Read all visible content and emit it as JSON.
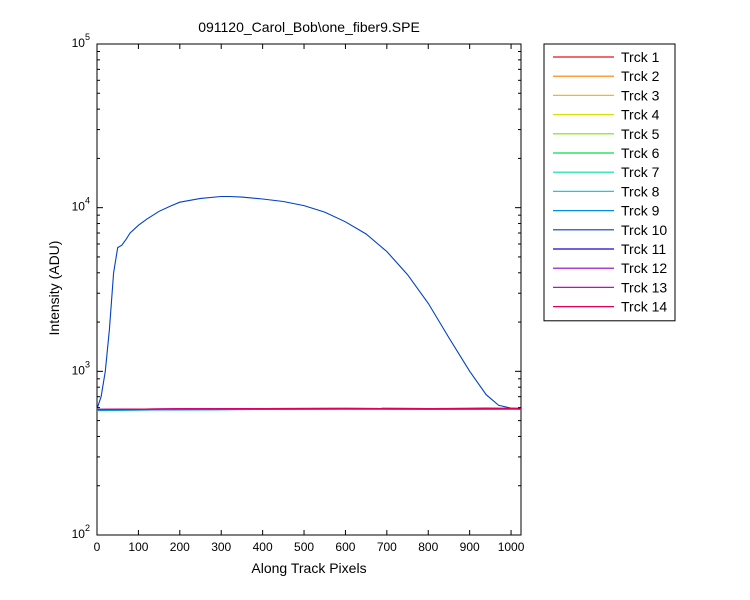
{
  "chart_data": {
    "type": "line",
    "title": "091120_Carol_Bob\\one_fiber9.SPE",
    "xlabel": "Along Track Pixels",
    "ylabel": "Intensity (ADU)",
    "xlim": [
      0,
      1024
    ],
    "ylim": [
      100,
      100000
    ],
    "yscale": "log",
    "grid": false,
    "legend_position": "outside-right",
    "x_ticks": [
      "0",
      "100",
      "200",
      "300",
      "400",
      "500",
      "600",
      "700",
      "800",
      "900",
      "1000"
    ],
    "x_tick_values": [
      0,
      100,
      200,
      300,
      400,
      500,
      600,
      700,
      800,
      900,
      1000
    ],
    "y_ticks": [
      {
        "base": "10",
        "exp": "2",
        "value": 100
      },
      {
        "base": "10",
        "exp": "3",
        "value": 1000
      },
      {
        "base": "10",
        "exp": "4",
        "value": 10000
      },
      {
        "base": "10",
        "exp": "5",
        "value": 100000
      }
    ],
    "series": [
      {
        "name": "Trck 1",
        "color": "#e8101a",
        "x": [
          0,
          200,
          400,
          600,
          800,
          1024
        ],
        "values": [
          580,
          585,
          588,
          590,
          588,
          590
        ]
      },
      {
        "name": "Trck 2",
        "color": "#ff7f00",
        "x": [
          0,
          200,
          400,
          600,
          800,
          1024
        ],
        "values": [
          580,
          585,
          588,
          590,
          588,
          590
        ]
      },
      {
        "name": "Trck 3",
        "color": "#f0c000",
        "x": [
          0,
          200,
          400,
          600,
          800,
          1024
        ],
        "values": [
          580,
          585,
          588,
          590,
          588,
          590
        ]
      },
      {
        "name": "Trck 4",
        "color": "#d8e000",
        "x": [
          0,
          200,
          400,
          600,
          800,
          940,
          1024
        ],
        "values": [
          580,
          585,
          588,
          590,
          588,
          600,
          590
        ]
      },
      {
        "name": "Trck 5",
        "color": "#80e000",
        "x": [
          0,
          200,
          400,
          600,
          800,
          1024
        ],
        "values": [
          578,
          583,
          586,
          588,
          586,
          588
        ]
      },
      {
        "name": "Trck 6",
        "color": "#00e040",
        "x": [
          0,
          200,
          400,
          600,
          800,
          1024
        ],
        "values": [
          578,
          583,
          586,
          588,
          586,
          588
        ]
      },
      {
        "name": "Trck 7",
        "color": "#00e0a0",
        "x": [
          0,
          200,
          400,
          600,
          800,
          1024
        ],
        "values": [
          578,
          582,
          585,
          587,
          585,
          587
        ]
      },
      {
        "name": "Trck 8",
        "color": "#00d8e0",
        "x": [
          0,
          200,
          400,
          600,
          800,
          1024
        ],
        "values": [
          578,
          582,
          585,
          587,
          585,
          587
        ]
      },
      {
        "name": "Trck 9",
        "color": "#0090e0",
        "x": [
          0,
          200,
          400,
          600,
          800,
          1024
        ],
        "values": [
          578,
          582,
          585,
          587,
          585,
          587
        ]
      },
      {
        "name": "Trck 10",
        "color": "#0040c8",
        "x": [
          0,
          10,
          20,
          30,
          40,
          50,
          60,
          70,
          80,
          100,
          120,
          150,
          180,
          200,
          250,
          300,
          320,
          350,
          400,
          450,
          500,
          550,
          600,
          650,
          700,
          750,
          800,
          850,
          900,
          940,
          970,
          1000,
          1024
        ],
        "values": [
          590,
          700,
          1000,
          1800,
          4000,
          5700,
          5900,
          6400,
          7000,
          7800,
          8500,
          9500,
          10300,
          10800,
          11400,
          11700,
          11700,
          11600,
          11300,
          10900,
          10300,
          9400,
          8200,
          6900,
          5400,
          3900,
          2600,
          1600,
          1000,
          720,
          620,
          595,
          590
        ]
      },
      {
        "name": "Trck 11",
        "color": "#2000c0",
        "x": [
          0,
          200,
          400,
          600,
          800,
          1024
        ],
        "values": [
          585,
          590,
          592,
          594,
          592,
          594
        ]
      },
      {
        "name": "Trck 12",
        "color": "#9000c8",
        "x": [
          0,
          200,
          400,
          600,
          800,
          1024
        ],
        "values": [
          585,
          590,
          592,
          594,
          592,
          594
        ]
      },
      {
        "name": "Trck 13",
        "color": "#d000d0",
        "x": [
          0,
          200,
          400,
          600,
          800,
          1024
        ],
        "values": [
          585,
          590,
          592,
          594,
          592,
          594
        ]
      },
      {
        "name": "Trck 14",
        "color": "#e0005a",
        "x": [
          0,
          200,
          400,
          600,
          800,
          1024
        ],
        "values": [
          585,
          590,
          592,
          594,
          592,
          594
        ]
      }
    ]
  }
}
